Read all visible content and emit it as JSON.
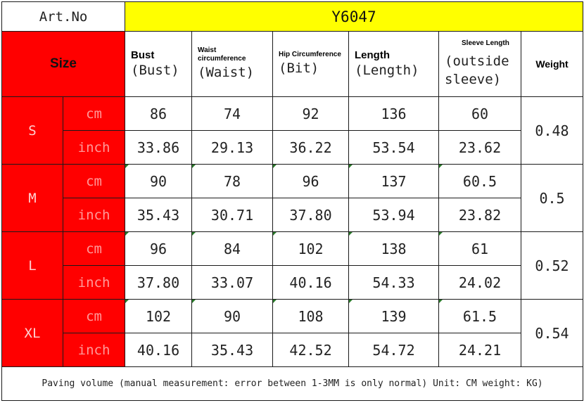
{
  "header": {
    "art_no_label": "Art.No",
    "model": "Y6047"
  },
  "columns": {
    "size_label": "Size",
    "bust": {
      "title": "Bust",
      "sub": "(Bust)"
    },
    "waist": {
      "title": "Waist circumference",
      "sub": "(Waist)"
    },
    "hip": {
      "title": "Hip Circumference",
      "sub": "(Bit)"
    },
    "length": {
      "title": "Length",
      "sub": "(Length)"
    },
    "sleeve": {
      "title": "Sleeve Length",
      "sub": "(outside sleeve)"
    },
    "weight": {
      "title": "Weight"
    }
  },
  "units": {
    "cm": "cm",
    "inch": "inch"
  },
  "sizes": [
    {
      "size": "S",
      "cm": [
        "86",
        "74",
        "92",
        "136",
        "60"
      ],
      "inch": [
        "33.86",
        "29.13",
        "36.22",
        "53.54",
        "23.62"
      ],
      "weight": "0.48"
    },
    {
      "size": "M",
      "cm": [
        "90",
        "78",
        "96",
        "137",
        "60.5"
      ],
      "inch": [
        "35.43",
        "30.71",
        "37.80",
        "53.94",
        "23.82"
      ],
      "weight": "0.5"
    },
    {
      "size": "L",
      "cm": [
        "96",
        "84",
        "102",
        "138",
        "61"
      ],
      "inch": [
        "37.80",
        "33.07",
        "40.16",
        "54.33",
        "24.02"
      ],
      "weight": "0.52"
    },
    {
      "size": "XL",
      "cm": [
        "102",
        "90",
        "108",
        "139",
        "61.5"
      ],
      "inch": [
        "40.16",
        "35.43",
        "42.52",
        "54.72",
        "24.21"
      ],
      "weight": "0.54"
    }
  ],
  "footer": "Paving volume (manual measurement: error between 1-3MM is only normal) Unit: CM weight: KG)",
  "colors": {
    "size_header_bg": "#ff0000",
    "model_bg": "#ffff00"
  }
}
